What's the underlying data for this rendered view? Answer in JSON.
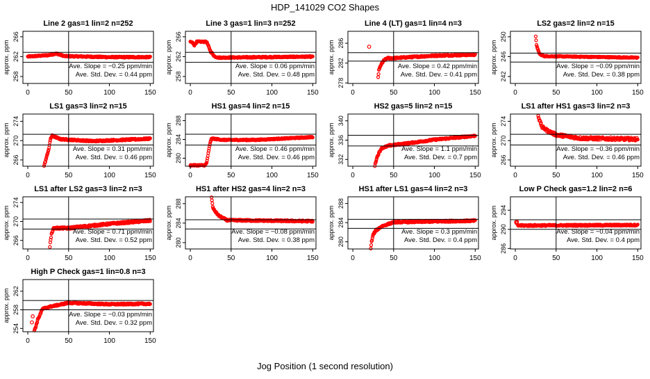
{
  "chart_data": {
    "type": "scatter",
    "title": "HDP_141029  CO2 Shapes",
    "xlabel": "Jog Position (1 second resolution)",
    "ylabel": "approx. ppm",
    "xlim": [
      -6,
      154
    ],
    "xticks": [
      0,
      50,
      100,
      150
    ],
    "vline_x": 50,
    "marker_color": "#ff0000",
    "panels": [
      {
        "title": "Line 2 gas=1 lin=2 n=252",
        "ylim": [
          256.6,
          267.1
        ],
        "yticks": [
          258,
          262,
          266
        ],
        "hlines": [
          262.86,
          260.86
        ],
        "slope_text": "Ave. Slope =  −0.25  ppm/min",
        "std_text": "Ave. Std. Dev. =  0.44  ppm",
        "noise": 0.12,
        "start": 0,
        "points": [
          [
            0,
            262
          ],
          [
            25,
            262.3
          ],
          [
            35,
            262.6
          ],
          [
            45,
            262.1
          ],
          [
            100,
            261.9
          ],
          [
            150,
            261.9
          ]
        ],
        "extra": []
      },
      {
        "title": "Line 3 gas=1 lin=3 n=252",
        "ylim": [
          256.6,
          267.1
        ],
        "yticks": [
          258,
          262,
          266
        ],
        "hlines": [
          262.86,
          260.86
        ],
        "slope_text": "Ave. Slope =  0.06  ppm/min",
        "std_text": "Ave. Std. Dev. =  0.48  ppm",
        "noise": 0.12,
        "start": 0,
        "points": [
          [
            0,
            265
          ],
          [
            3,
            264.8
          ],
          [
            5,
            264.3
          ],
          [
            8,
            265
          ],
          [
            20,
            265
          ],
          [
            25,
            263
          ],
          [
            30,
            262
          ],
          [
            35,
            261.8
          ],
          [
            150,
            262
          ]
        ],
        "extra": []
      },
      {
        "title": "Line 4 (LT) gas=1 lin=4 n=3",
        "ylim": [
          277.9,
          288.4
        ],
        "yticks": [
          278,
          282,
          286
        ],
        "hlines": [
          284.1,
          282.4
        ],
        "slope_text": "Ave. Slope =  0.42  ppm/min",
        "std_text": "Ave. Std. Dev. =  0.41  ppm",
        "noise": 0.15,
        "start": 31,
        "points": [
          [
            31,
            279.2
          ],
          [
            32,
            280.5
          ],
          [
            34,
            281.5
          ],
          [
            38,
            282.5
          ],
          [
            42,
            283
          ],
          [
            50,
            283
          ],
          [
            100,
            283.5
          ],
          [
            150,
            283.7
          ]
        ],
        "extra": [
          [
            20,
            285.3
          ]
        ]
      },
      {
        "title": "LS2 gas=2 lin=2 n=15",
        "ylim": [
          240.6,
          251.1
        ],
        "yticks": [
          242,
          246,
          250
        ],
        "hlines": [
          246.7,
          244.9
        ],
        "slope_text": "Ave. Slope =  −0.09  ppm/min",
        "std_text": "Ave. Std. Dev. =  0.38  ppm",
        "noise": 0.1,
        "start": 25,
        "points": [
          [
            25,
            250
          ],
          [
            26,
            248.4
          ],
          [
            28,
            247.2
          ],
          [
            30,
            246.5
          ],
          [
            35,
            246.1
          ],
          [
            150,
            245.8
          ]
        ],
        "extra": []
      },
      {
        "title": "LS1 gas=3 lin=2 n=15",
        "ylim": [
          264.7,
          275.5
        ],
        "yticks": [
          266,
          270,
          274
        ],
        "hlines": [
          271.3,
          269.1
        ],
        "slope_text": "Ave. Slope =  0.31  ppm/min",
        "std_text": "Ave. Std. Dev. =  0.46  ppm",
        "noise": 0.15,
        "start": 20,
        "points": [
          [
            20,
            264.8
          ],
          [
            22,
            266
          ],
          [
            24,
            267.2
          ],
          [
            26,
            268.5
          ],
          [
            28,
            270.5
          ],
          [
            30,
            271
          ],
          [
            40,
            270.3
          ],
          [
            80,
            269.9
          ],
          [
            150,
            270.4
          ]
        ],
        "extra": []
      },
      {
        "title": "HS1 gas=4 lin=2 n=15",
        "ylim": [
          278.3,
          289.4
        ],
        "yticks": [
          280,
          284,
          288
        ],
        "hlines": [
          285.1,
          282.8
        ],
        "slope_text": "Ave. Slope =  0.46  ppm/min",
        "std_text": "Ave. Std. Dev. =  0.46  ppm",
        "noise": 0.12,
        "start": 0,
        "points": [
          [
            0,
            278.5
          ],
          [
            18,
            278.5
          ],
          [
            20,
            279
          ],
          [
            22,
            281
          ],
          [
            24,
            283
          ],
          [
            26,
            284.2
          ],
          [
            40,
            283.9
          ],
          [
            80,
            283.9
          ],
          [
            150,
            284.5
          ]
        ],
        "extra": []
      },
      {
        "title": "HS2 gas=5 lin=2 n=15",
        "ylim": [
          330.6,
          341.4
        ],
        "yticks": [
          332,
          336,
          340
        ],
        "hlines": [
          337.0,
          334.8
        ],
        "slope_text": "Ave. Slope =  1.1  ppm/min",
        "std_text": "Ave. Std. Dev. =  0.7  ppm",
        "noise": 0.15,
        "start": 27,
        "points": [
          [
            27,
            330.7
          ],
          [
            29,
            332.1
          ],
          [
            31,
            333
          ],
          [
            35,
            334.3
          ],
          [
            45,
            334.9
          ],
          [
            70,
            335.4
          ],
          [
            100,
            336.1
          ],
          [
            150,
            336.9
          ]
        ],
        "extra": []
      },
      {
        "title": "LS1 after HS1 gas=3 lin=2 n=3",
        "ylim": [
          264.7,
          275.5
        ],
        "yticks": [
          266,
          270,
          274
        ],
        "hlines": [
          271.3,
          269.1
        ],
        "slope_text": "Ave. Slope =  −0.36  ppm/min",
        "std_text": "Ave. Std. Dev. =  0.46  ppm",
        "noise": 0.3,
        "start": 28,
        "points": [
          [
            28,
            275.3
          ],
          [
            30,
            274
          ],
          [
            33,
            272.8
          ],
          [
            40,
            272
          ],
          [
            50,
            271.2
          ],
          [
            80,
            270.5
          ],
          [
            150,
            270.3
          ]
        ],
        "extra": []
      },
      {
        "title": "LS1 after LS2 gas=3 lin=2 n=3",
        "ylim": [
          264.2,
          275.2
        ],
        "yticks": [
          266,
          270,
          274
        ],
        "hlines": [
          270.5,
          268.4
        ],
        "slope_text": "Ave. Slope =  0.71  ppm/min",
        "std_text": "Ave. Std. Dev. =  0.52  ppm",
        "noise": 0.2,
        "start": 27,
        "points": [
          [
            27,
            264.8
          ],
          [
            28,
            266
          ],
          [
            29,
            267.3
          ],
          [
            30,
            268
          ],
          [
            32,
            268.6
          ],
          [
            50,
            268.6
          ],
          [
            100,
            269.5
          ],
          [
            150,
            270.2
          ]
        ],
        "extra": []
      },
      {
        "title": "HS1 after HS2 gas=4 lin=2 n=3",
        "ylim": [
          278.7,
          289.4
        ],
        "yticks": [
          280,
          284,
          288
        ],
        "hlines": [
          284.7,
          282.8
        ],
        "slope_text": "Ave. Slope =  −0.08  ppm/min",
        "std_text": "Ave. Std. Dev. =  0.38  ppm",
        "noise": 0.15,
        "start": 26,
        "points": [
          [
            26,
            289.3
          ],
          [
            27,
            288
          ],
          [
            28,
            287
          ],
          [
            30,
            286.5
          ],
          [
            35,
            285.5
          ],
          [
            45,
            284.6
          ],
          [
            150,
            284.4
          ]
        ],
        "extra": []
      },
      {
        "title": "HS1 after LS1 gas=4 lin=2 n=3",
        "ylim": [
          278.5,
          289.4
        ],
        "yticks": [
          280,
          284,
          288
        ],
        "hlines": [
          284.7,
          282.8
        ],
        "slope_text": "Ave. Slope =  0.3  ppm/min",
        "std_text": "Ave. Std. Dev. =  0.4  ppm",
        "noise": 0.15,
        "start": 22,
        "points": [
          [
            22,
            278.6
          ],
          [
            23,
            280
          ],
          [
            25,
            281.5
          ],
          [
            28,
            282.3
          ],
          [
            35,
            283.2
          ],
          [
            50,
            284.1
          ],
          [
            150,
            284.4
          ]
        ],
        "extra": []
      },
      {
        "title": "Low P Check gas=1.2 lin=2 n=6",
        "ylim": [
          285.9,
          296.8
        ],
        "yticks": [
          286,
          290,
          294
        ],
        "hlines": [
          292.0,
          290.0
        ],
        "slope_text": "Ave. Slope =  −0.04  ppm/min",
        "std_text": "Ave. Std. Dev. =  0.4  ppm",
        "noise": 0.15,
        "start": 3,
        "points": [
          [
            3,
            290.8
          ],
          [
            150,
            290.9
          ]
        ],
        "extra": [
          [
            1,
            291.5
          ],
          [
            1.5,
            291.3
          ],
          [
            2,
            291.6
          ]
        ]
      },
      {
        "title": "High P Check gas=1 lin=0.8 n=3",
        "ylim": [
          253.3,
          264.5
        ],
        "yticks": [
          254,
          258,
          262
        ],
        "hlines": [
          260.0,
          258.0
        ],
        "slope_text": "Ave. Slope =  −0.03  ppm/min",
        "std_text": "Ave. Std. Dev. =  0.32  ppm",
        "noise": 0.15,
        "start": 8,
        "points": [
          [
            8,
            253.6
          ],
          [
            10,
            254.5
          ],
          [
            12,
            255.8
          ],
          [
            15,
            257
          ],
          [
            18,
            258.2
          ],
          [
            25,
            258.6
          ],
          [
            50,
            259.5
          ],
          [
            100,
            259.2
          ],
          [
            150,
            259.3
          ]
        ],
        "extra": [
          [
            5,
            255.3
          ],
          [
            6,
            256.6
          ]
        ]
      }
    ]
  }
}
